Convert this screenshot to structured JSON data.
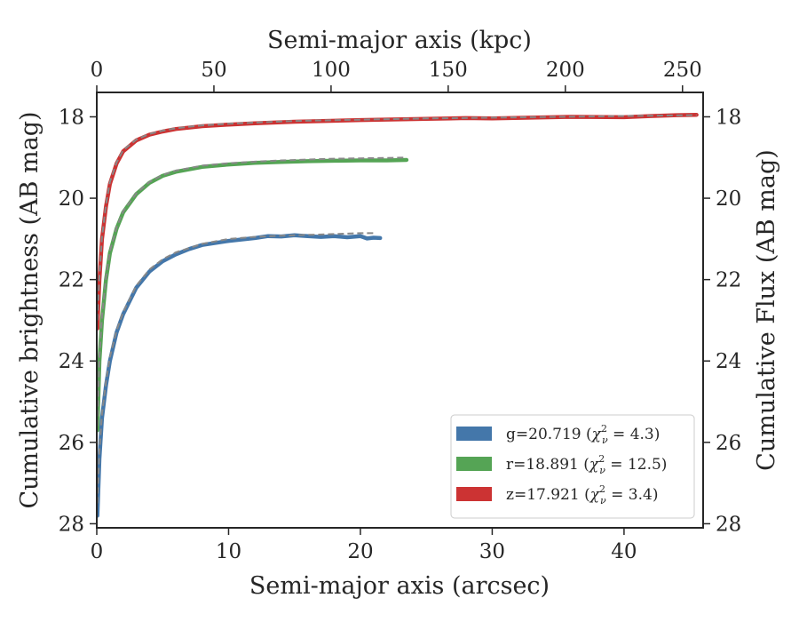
{
  "chart_data": {
    "type": "line",
    "xlabel": "Semi-major axis (arcsec)",
    "xlabel_top": "Semi-major axis (kpc)",
    "ylabel": "Cumulative brightness (AB mag)",
    "ylabel_right": "Cumulative Flux (AB mag)",
    "xlim": [
      0,
      46
    ],
    "xlim_top": [
      0,
      258.8
    ],
    "ylim": [
      28.1,
      17.4
    ],
    "y_inverted": true,
    "xticks": [
      0,
      10,
      20,
      30,
      40
    ],
    "xticks_top": [
      0,
      50,
      100,
      150,
      200,
      250
    ],
    "yticks": [
      18,
      20,
      22,
      24,
      26,
      28
    ],
    "grid": false,
    "legend_position": "lower-right",
    "legend": [
      {
        "label": "g=20.719 (χ²ν = 4.3)",
        "text": "g=20.719 (",
        "chi_sup": "2",
        "chi_sub": "ν",
        "chi_val": " = 4.3)",
        "color": "#4477aa"
      },
      {
        "label": "r=18.891 (χ²ν = 12.5)",
        "text": "r=18.891 (",
        "chi_sup": "2",
        "chi_sub": "ν",
        "chi_val": " = 12.5)",
        "color": "#55a455"
      },
      {
        "label": "z=17.921 (χ²ν = 3.4)",
        "text": "z=17.921 (",
        "chi_sup": "2",
        "chi_sub": "ν",
        "chi_val": " = 3.4)",
        "color": "#cc3333"
      }
    ],
    "series": [
      {
        "name": "g",
        "color": "#4477aa",
        "x": [
          0.05,
          0.2,
          0.4,
          0.7,
          1.0,
          1.5,
          2.0,
          3.0,
          4.0,
          5.0,
          6.0,
          7.0,
          8.0,
          10.0,
          12.0,
          13.0,
          14.0,
          15.0,
          16.0,
          17.0,
          18.0,
          19.0,
          20.0,
          20.5,
          21.0,
          21.5
        ],
        "y": [
          27.8,
          26.4,
          25.4,
          24.6,
          24.0,
          23.3,
          22.85,
          22.2,
          21.8,
          21.55,
          21.38,
          21.25,
          21.15,
          21.05,
          20.98,
          20.93,
          20.94,
          20.91,
          20.93,
          20.95,
          20.93,
          20.96,
          20.93,
          20.99,
          20.97,
          20.98
        ]
      },
      {
        "name": "g model",
        "style": "dashed",
        "color": "#888888",
        "x": [
          0.05,
          0.2,
          0.4,
          0.7,
          1.0,
          1.5,
          2.0,
          3.0,
          4.0,
          5.0,
          6.0,
          8.0,
          10.0,
          12.0,
          14.0,
          16.0,
          18.0,
          20.0,
          21.0
        ],
        "y": [
          27.5,
          26.2,
          25.3,
          24.5,
          23.9,
          23.25,
          22.8,
          22.15,
          21.75,
          21.5,
          21.33,
          21.12,
          21.0,
          20.95,
          20.92,
          20.9,
          20.88,
          20.86,
          20.86
        ]
      },
      {
        "name": "r",
        "color": "#55a455",
        "x": [
          0.05,
          0.2,
          0.4,
          0.7,
          1.0,
          1.5,
          2.0,
          3.0,
          4.0,
          5.0,
          6.0,
          8.0,
          10.0,
          12.0,
          14.0,
          16.0,
          18.0,
          20.0,
          22.0,
          23.5
        ],
        "y": [
          25.7,
          24.0,
          23.0,
          22.0,
          21.35,
          20.75,
          20.35,
          19.9,
          19.62,
          19.45,
          19.35,
          19.23,
          19.17,
          19.13,
          19.11,
          19.09,
          19.08,
          19.07,
          19.07,
          19.06
        ]
      },
      {
        "name": "r model",
        "style": "dashed",
        "color": "#888888",
        "x": [
          0.05,
          0.2,
          0.4,
          0.7,
          1.0,
          1.5,
          2.0,
          3.0,
          4.0,
          5.0,
          6.0,
          8.0,
          10.0,
          12.0,
          14.0,
          16.0,
          18.0,
          20.0,
          22.0,
          23.5
        ],
        "y": [
          25.6,
          23.9,
          22.9,
          21.95,
          21.3,
          20.72,
          20.32,
          19.88,
          19.6,
          19.43,
          19.32,
          19.2,
          19.14,
          19.1,
          19.07,
          19.05,
          19.03,
          19.02,
          19.01,
          19.0
        ]
      },
      {
        "name": "z",
        "color": "#cc3333",
        "x": [
          0.05,
          0.2,
          0.4,
          0.7,
          1.0,
          1.5,
          2.0,
          3.0,
          4.0,
          5.0,
          6.0,
          8.0,
          10.0,
          12.0,
          15.0,
          20.0,
          25.0,
          28.0,
          30.0,
          33.0,
          36.0,
          40.0,
          42.0,
          44.0,
          45.5
        ],
        "y": [
          23.2,
          22.0,
          21.0,
          20.2,
          19.65,
          19.15,
          18.85,
          18.58,
          18.44,
          18.36,
          18.3,
          18.23,
          18.19,
          18.16,
          18.12,
          18.08,
          18.05,
          18.03,
          18.04,
          18.02,
          18.0,
          18.01,
          17.98,
          17.96,
          17.95
        ]
      },
      {
        "name": "z model",
        "style": "dashed",
        "color": "#888888",
        "x": [
          0.05,
          0.2,
          0.4,
          0.7,
          1.0,
          1.5,
          2.0,
          3.0,
          4.0,
          5.0,
          6.0,
          8.0,
          10.0,
          12.0,
          15.0,
          20.0,
          25.0,
          30.0,
          35.0,
          40.0,
          45.5
        ],
        "y": [
          23.0,
          21.9,
          20.95,
          20.15,
          19.6,
          19.12,
          18.82,
          18.56,
          18.42,
          18.34,
          18.28,
          18.21,
          18.17,
          18.14,
          18.1,
          18.07,
          18.04,
          18.02,
          18.0,
          17.98,
          17.96
        ]
      }
    ]
  }
}
